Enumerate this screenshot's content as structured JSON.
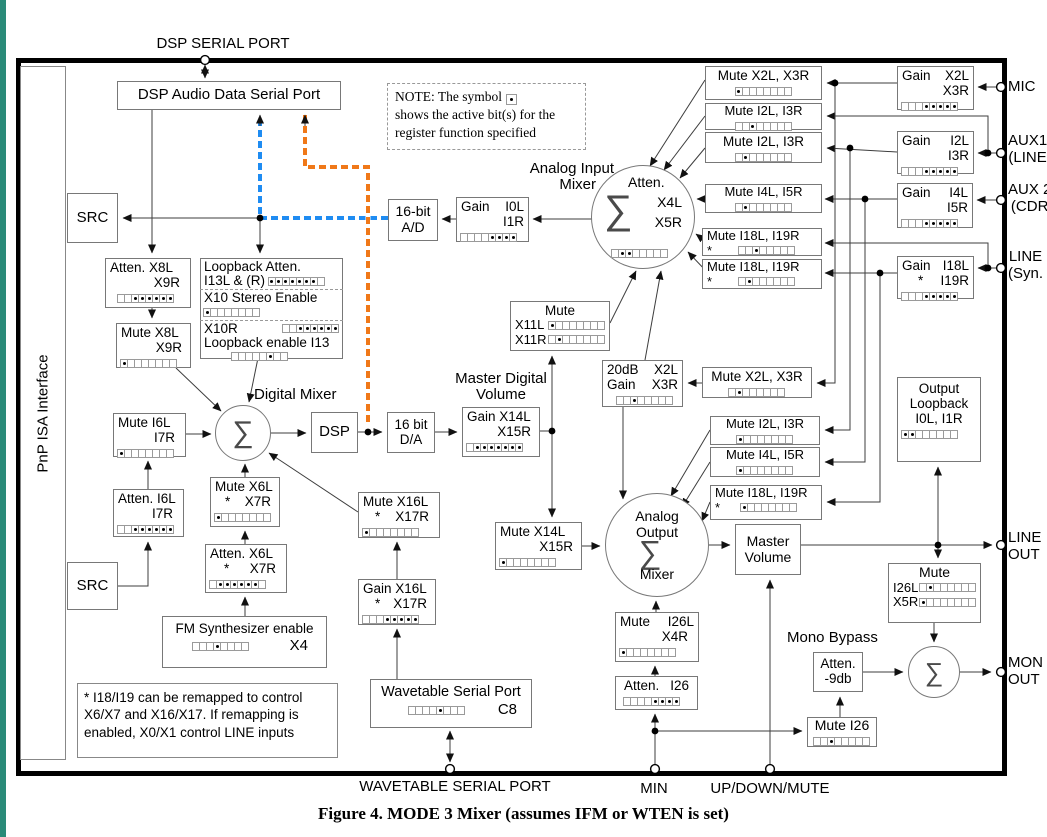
{
  "caption": "Figure 4. MODE 3 Mixer (assumes IFM or WTEN is set)",
  "note": {
    "l1": "NOTE: The symbol",
    "l2": "shows the active bit(s) for the",
    "l3": "register function specified"
  },
  "footnote": {
    "l1": "* I18/I19 can be remapped to control",
    "l2": "X6/X7 and X16/X17. If remapping is",
    "l3": "enabled, X0/X1 control LINE inputs"
  },
  "labels": {
    "pnp": "PnP ISA Interface",
    "dsp_serial_port": "DSP SERIAL PORT",
    "wavetable_serial_port": "WAVETABLE SERIAL PORT",
    "min": "MIN",
    "up_down_mute": "UP/DOWN/MUTE",
    "analog_input_1": "Analog Input",
    "analog_input_2": "Mixer",
    "digital_mixer": "Digital Mixer",
    "master_digital_1": "Master Digital",
    "master_digital_2": "Volume",
    "mono_bypass": "Mono Bypass"
  },
  "io": {
    "mic": "MIC",
    "aux1_1": "AUX1",
    "aux1_2": "(LINE",
    "aux2_1": "AUX 2",
    "aux2_2": "(CDR",
    "line_1": "LINE",
    "line_2": "(Syn.",
    "lineout_1": "LINE",
    "lineout_2": "OUT",
    "monout_1": "MON",
    "monout_2": "OUT"
  },
  "mixers": {
    "input": {
      "l1": "Atten.",
      "ch1": "X4L",
      "ch2": "X5R",
      "sigma": "∑",
      "dots": [
        2,
        3
      ]
    },
    "digital": {
      "sigma": "∑"
    },
    "output": {
      "l1": "Analog",
      "l2": "Output",
      "sigma": "∑",
      "l3": "Mixer"
    },
    "mono": {
      "sigma": "∑"
    }
  },
  "boxes": {
    "dsp_audio": {
      "label": "DSP Audio Data Serial Port"
    },
    "src_top": {
      "label": "SRC"
    },
    "src_bot": {
      "label": "SRC"
    },
    "ad": {
      "l1": "16-bit",
      "l2": "A/D"
    },
    "da": {
      "l1": "16 bit",
      "l2": "D/A"
    },
    "dsp": {
      "label": "DSP"
    },
    "gain_i0": {
      "name": "Gain",
      "ch1": "I0L",
      "ch2": "I1R",
      "dots": [
        5,
        6,
        7,
        8
      ]
    },
    "atten_x8": {
      "l1": "Atten. X8L",
      "l2": "X9R",
      "dots": [
        3,
        4,
        5,
        6,
        7,
        8
      ]
    },
    "loopback": {
      "l1": "Loopback Atten.",
      "l2": "I13L & (R)",
      "l2_dots": [
        1,
        2,
        3,
        4,
        5,
        6,
        7
      ],
      "l3": "X10 Stereo Enable",
      "l3_dots": [
        1
      ],
      "l4": "X10R",
      "l4_dots": [
        3,
        4,
        5,
        6,
        7,
        8
      ],
      "l5": "Loopback enable I13",
      "l5_dots": [
        6
      ]
    },
    "mute_x8": {
      "l1": "Mute X8L",
      "l2": "X9R",
      "dots": [
        1
      ]
    },
    "mute_i6": {
      "l1": "Mute I6L",
      "l2": "I7R",
      "dots": [
        1
      ]
    },
    "gain_x14": {
      "l1": "Gain X14L",
      "l2": "X15R",
      "dots": [
        2,
        3,
        4,
        5,
        6,
        7,
        8
      ]
    },
    "mute_x11": {
      "l1": "Mute",
      "ch1": "X11L",
      "ch1_dots": [
        1
      ],
      "ch2": "X11R",
      "ch2_dots": [
        2
      ]
    },
    "db20": {
      "a1": "20dB",
      "a2": "X2L",
      "b1": "Gain",
      "b2": "X3R",
      "dots": [
        3
      ]
    },
    "mute_x14": {
      "l1": "Mute X14L",
      "l2": "X15R",
      "dots": [
        1
      ]
    },
    "mute_x16": {
      "l1": "Mute X16L",
      "star": "*",
      "l2": "X17R",
      "dots": [
        1
      ]
    },
    "gain_x16": {
      "l1": "Gain X16L",
      "star": "*",
      "l2": "X17R",
      "dots": [
        4,
        5,
        6,
        7,
        8
      ]
    },
    "atten_i6": {
      "l1": "Atten. I6L",
      "l2": "I7R",
      "dots": [
        3,
        4,
        5,
        6,
        7,
        8
      ]
    },
    "mute_x6": {
      "l1": "Mute X6L",
      "star": "*",
      "l2": "X7R",
      "dots": [
        1
      ]
    },
    "atten_x6": {
      "l1": "Atten. X6L",
      "star": "*",
      "l2": "X7R",
      "dots": [
        2,
        3,
        4,
        5,
        6,
        7
      ]
    },
    "fm": {
      "l1": "FM Synthesizer enable",
      "dots": [
        4
      ],
      "l2": "X4"
    },
    "wavetable": {
      "l1": "Wavetable Serial Port",
      "dots": [
        5
      ],
      "l2": "C8"
    },
    "mute_x2_top": {
      "label": "Mute X2L, X3R",
      "dots": [
        1
      ]
    },
    "mute_i2_a": {
      "label": "Mute I2L, I3R",
      "dots": [
        3
      ]
    },
    "mute_i2_b": {
      "label": "Mute I2L, I3R",
      "dots": [
        2
      ]
    },
    "mute_i4_top": {
      "label": "Mute I4L, I5R",
      "dots": [
        2
      ]
    },
    "mute_i18_a": {
      "label": "Mute I18L, I19R",
      "star": "*",
      "dots": [
        3
      ]
    },
    "mute_i18_b": {
      "label": "Mute I18L, I19R",
      "star": "*",
      "dots": [
        2
      ]
    },
    "gain_x2": {
      "name": "Gain",
      "ch1": "X2L",
      "ch2": "X3R",
      "dots": [
        4,
        5,
        6,
        7,
        8
      ]
    },
    "gain_i2": {
      "name": "Gain",
      "ch1": "I2L",
      "ch2": "I3R",
      "dots": [
        4,
        5,
        6,
        7,
        8
      ]
    },
    "gain_i4": {
      "name": "Gain",
      "ch1": "I4L",
      "ch2": "I5R",
      "dots": [
        4,
        5,
        6,
        7,
        8
      ]
    },
    "gain_i18": {
      "name": "Gain",
      "ch1": "I18L",
      "star": "*",
      "ch2": "I19R",
      "dots": [
        4,
        5,
        6,
        7,
        8
      ]
    },
    "out_loopback": {
      "l1": "Output",
      "l2": "Loopback",
      "l3": "I0L, I1R",
      "dots": [
        1,
        2
      ]
    },
    "mute_x2_mid": {
      "label": "Mute X2L, X3R",
      "dots": [
        2
      ]
    },
    "mute_i2_mid": {
      "label": "Mute I2L, I3R",
      "dots": [
        1
      ]
    },
    "mute_i4_mid": {
      "label": "Mute I4L, I5R",
      "dots": [
        1
      ]
    },
    "mute_i18_mid": {
      "label": "Mute I18L, I19R",
      "star": "*",
      "dots": [
        1
      ]
    },
    "master_vol": {
      "l1": "Master",
      "l2": "Volume"
    },
    "mute_i26_x4": {
      "n": "Mute",
      "ch1": "I26L",
      "ch2": "X4R",
      "dots": [
        1
      ]
    },
    "atten_i26": {
      "l1": "Atten.",
      "l2": "I26",
      "dots": [
        5,
        6,
        7,
        8
      ]
    },
    "atten_9db": {
      "l1": "Atten.",
      "l2": "-9db"
    },
    "mute_i26": {
      "label": "Mute I26",
      "dots": [
        3
      ]
    },
    "mute_i26_x5": {
      "l1": "Mute",
      "ch1": "I26L",
      "ch1_dots": [
        2
      ],
      "ch2": "X5R",
      "ch2_dots": [
        1
      ]
    }
  },
  "colors": {
    "record_path_blue": "#1f8cf2",
    "playback_path_orange": "#f07818",
    "page_edge_teal": "#2a8b79"
  }
}
